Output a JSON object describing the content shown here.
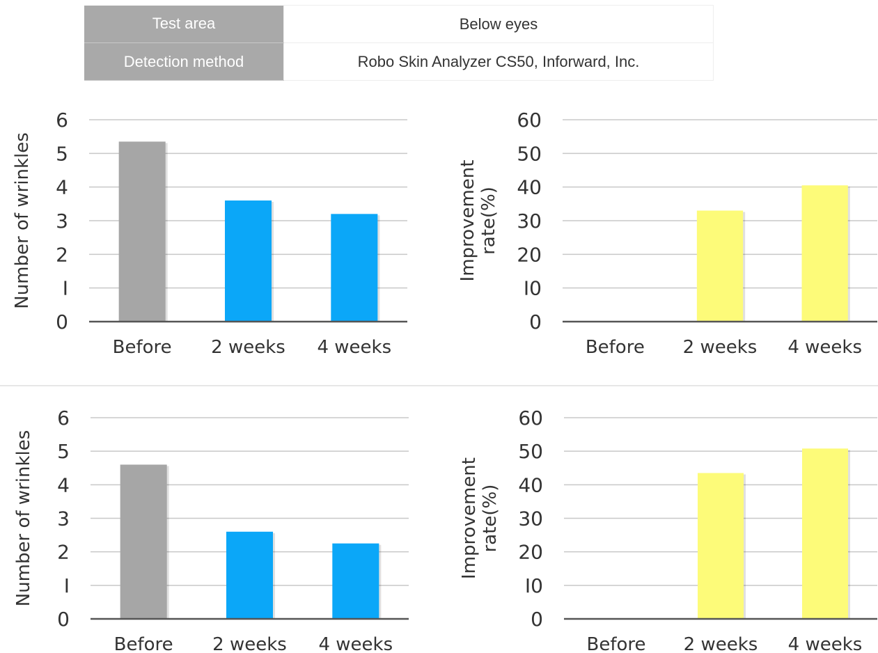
{
  "info_table": {
    "rows": [
      {
        "label": "Test area",
        "value": "Below eyes"
      },
      {
        "label": "Detection method",
        "value": "Robo Skin Analyzer CS50, Inforward, Inc."
      }
    ]
  },
  "colors": {
    "before_bar": "#a6a6a6",
    "count_bar": "#0ba7f8",
    "rate_bar": "#fdfb79",
    "grid": "#c8c8c8",
    "axis": "#555555"
  },
  "chart_data": [
    {
      "type": "bar",
      "categories": [
        "Before",
        "2 weeks",
        "4 weeks"
      ],
      "values": [
        5.35,
        3.6,
        3.2
      ],
      "ylabel": "Number of wrinkles",
      "ylim": [
        0,
        6
      ],
      "yticks": [
        "0",
        "I",
        "2",
        "3",
        "4",
        "5",
        "6"
      ],
      "grid": true,
      "bar_colors": [
        "#a6a6a6",
        "#0ba7f8",
        "#0ba7f8"
      ]
    },
    {
      "type": "bar",
      "categories": [
        "Before",
        "2 weeks",
        "4 weeks"
      ],
      "values": [
        0,
        33,
        40.5
      ],
      "ylabel": [
        "Improvement",
        "rate(%)"
      ],
      "ylim": [
        0,
        60
      ],
      "yticks": [
        "0",
        "I0",
        "20",
        "30",
        "40",
        "50",
        "60"
      ],
      "grid": true,
      "bar_colors": [
        "#fdfb79",
        "#fdfb79",
        "#fdfb79"
      ]
    },
    {
      "type": "bar",
      "categories": [
        "Before",
        "2 weeks",
        "4 weeks"
      ],
      "values": [
        4.6,
        2.6,
        2.25
      ],
      "ylabel": "Number of wrinkles",
      "ylim": [
        0,
        6
      ],
      "yticks": [
        "0",
        "I",
        "2",
        "3",
        "4",
        "5",
        "6"
      ],
      "grid": true,
      "bar_colors": [
        "#a6a6a6",
        "#0ba7f8",
        "#0ba7f8"
      ]
    },
    {
      "type": "bar",
      "categories": [
        "Before",
        "2 weeks",
        "4 weeks"
      ],
      "values": [
        0,
        43.5,
        50.8
      ],
      "ylabel": [
        "Improvement",
        "rate(%)"
      ],
      "ylim": [
        0,
        60
      ],
      "yticks": [
        "0",
        "I0",
        "20",
        "30",
        "40",
        "50",
        "60"
      ],
      "grid": true,
      "bar_colors": [
        "#fdfb79",
        "#fdfb79",
        "#fdfb79"
      ]
    }
  ]
}
